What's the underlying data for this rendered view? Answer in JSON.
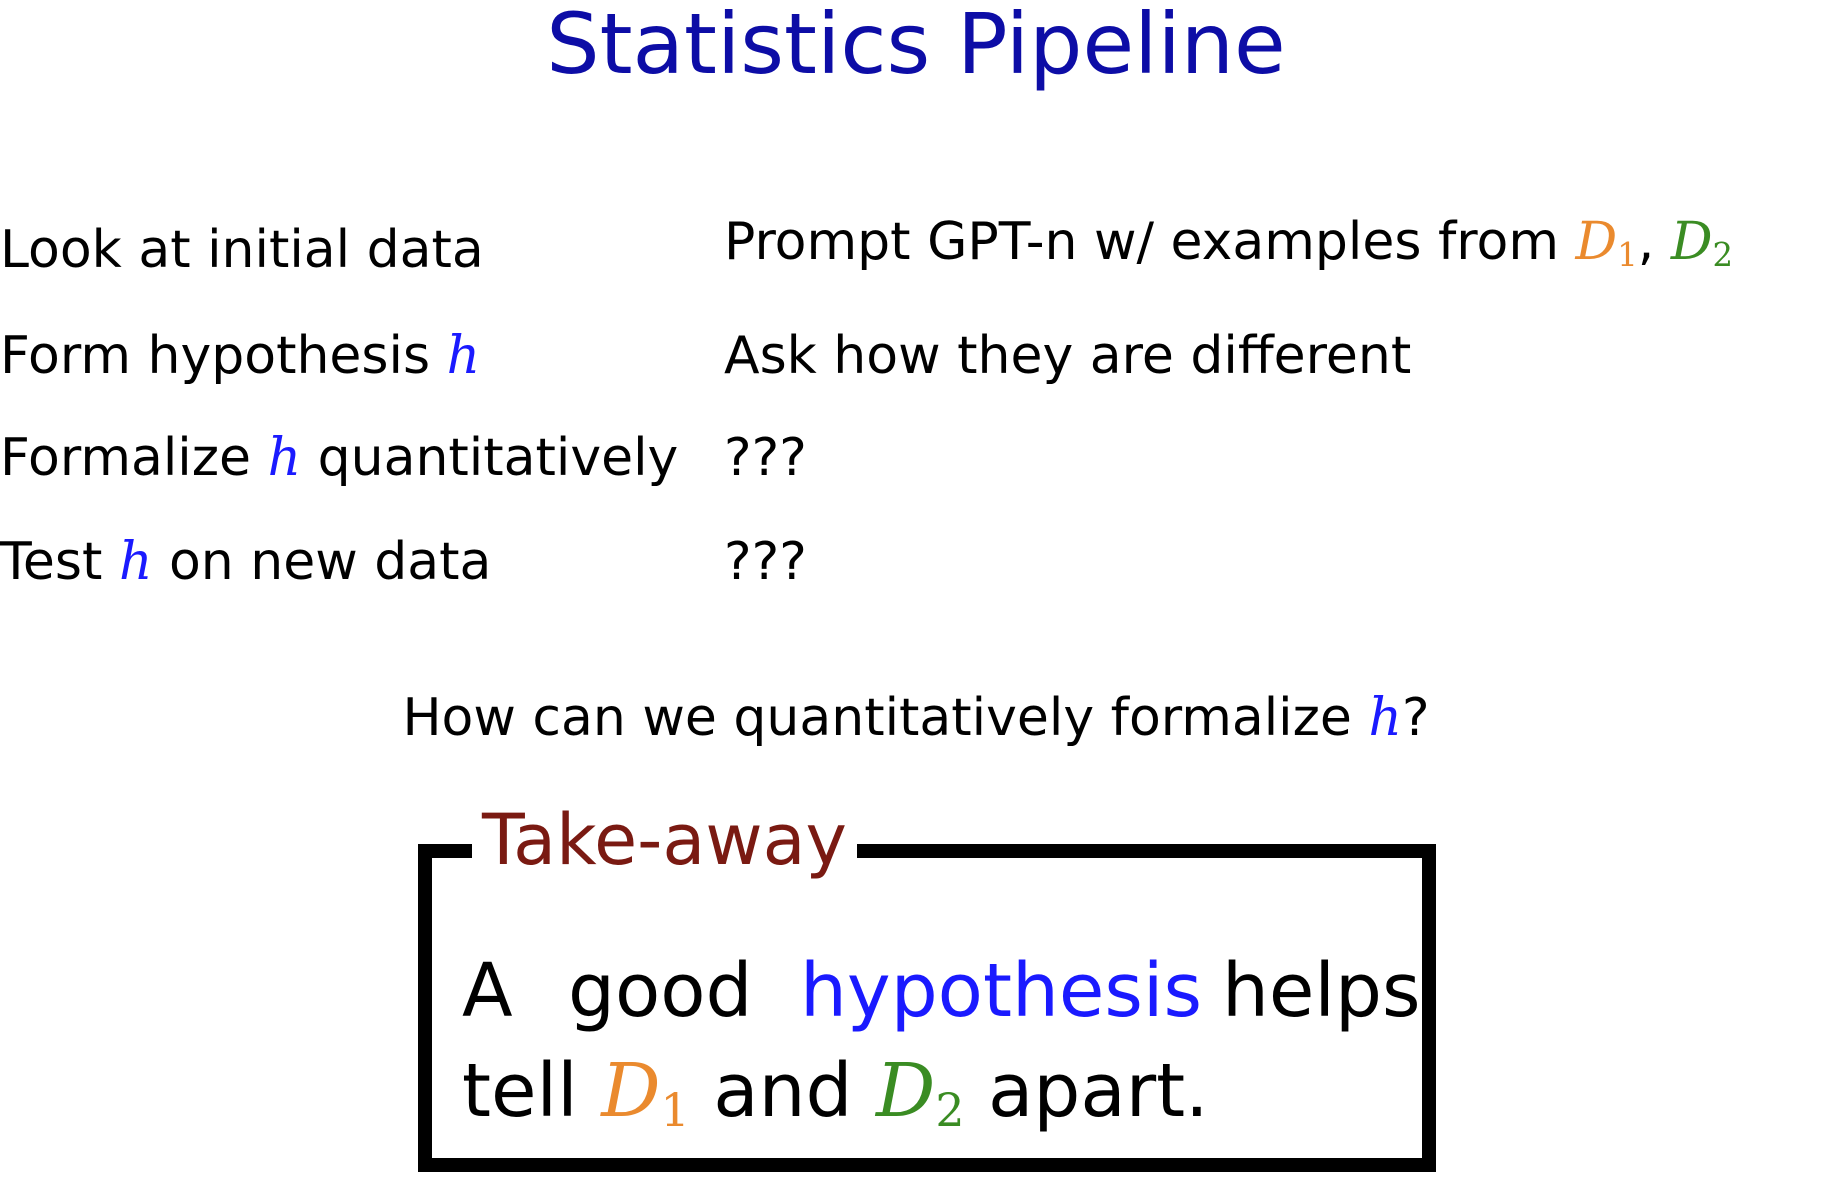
{
  "title": "Statistics Pipeline",
  "colors": {
    "title": "#0d0da6",
    "hypothesis": "#1a1aff",
    "d1": "#ea8a2e",
    "d2": "#3a8c23",
    "takeaway_title": "#7a1a12"
  },
  "pipeline": [
    {
      "step": {
        "before": "Look at initial data",
        "var": "",
        "after": ""
      },
      "action": {
        "text": "Prompt GPT-n w/ examples from ",
        "d1": "D",
        "d1_sub": "1",
        "sep": ", ",
        "d2": "D",
        "d2_sub": "2"
      }
    },
    {
      "step": {
        "before": "Form hypothesis ",
        "var": "h",
        "after": ""
      },
      "action": {
        "text": "Ask how they are different"
      }
    },
    {
      "step": {
        "before": "Formalize ",
        "var": "h",
        "after": " quantitatively"
      },
      "action": {
        "text": "???"
      }
    },
    {
      "step": {
        "before": "Test ",
        "var": "h",
        "after": " on new data"
      },
      "action": {
        "text": "???"
      }
    }
  ],
  "question": {
    "before": "How can we quantitatively formalize ",
    "var": "h",
    "after": "?"
  },
  "takeaway": {
    "title": "Take-away",
    "line1": {
      "w1": "A",
      "w2": "good",
      "w3": "hypothesis",
      "w4": "helps"
    },
    "line2": {
      "w1": "tell ",
      "d1": "D",
      "d1_sub": "1",
      "mid": " and ",
      "d2": "D",
      "d2_sub": "2",
      "end": " apart."
    }
  }
}
